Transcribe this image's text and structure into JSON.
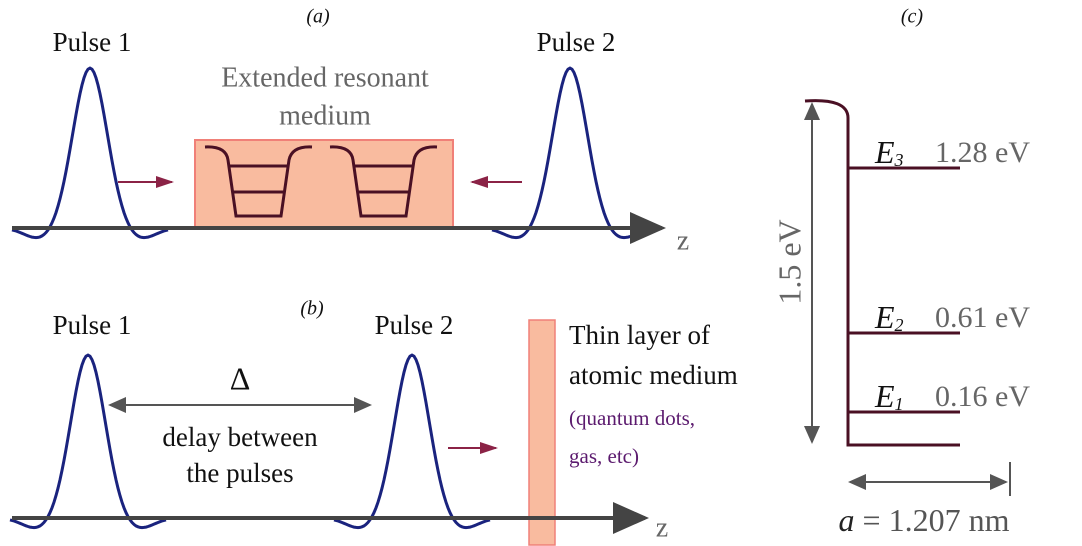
{
  "panel_a": {
    "label": "(a)",
    "pulse_1": "Pulse 1",
    "pulse_2": "Pulse 2",
    "medium": [
      "Extended resonant",
      "medium"
    ],
    "axis": "z"
  },
  "panel_b": {
    "label": "(b)",
    "pulse_1": "Pulse 1",
    "pulse_2": "Pulse 2",
    "delta": "Δ",
    "delay": [
      "delay between",
      "the pulses"
    ],
    "layer": [
      "Thin layer of",
      "atomic medium"
    ],
    "layer_note": [
      "(quantum dots,",
      "gas, etc)"
    ],
    "axis": "z"
  },
  "panel_c": {
    "label": "(c)",
    "height": "1.5 eV",
    "levels": [
      {
        "name": "E",
        "sub": "3",
        "energy": "1.28 eV"
      },
      {
        "name": "E",
        "sub": "2",
        "energy": "0.61 eV"
      },
      {
        "name": "E",
        "sub": "1",
        "energy": "0.16 eV"
      }
    ],
    "width_symbol": "a",
    "width_value": "= 1.207 nm"
  }
}
